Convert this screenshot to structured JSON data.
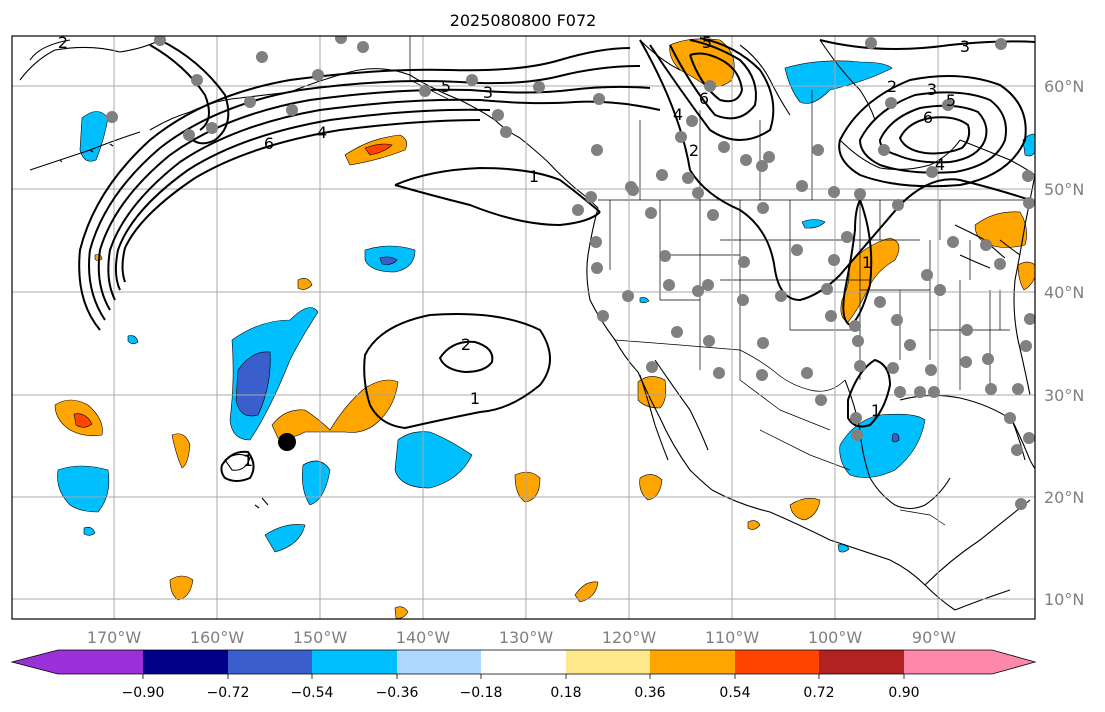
{
  "title": "2025080800 F072",
  "colors": {
    "ocean": "#ffffff",
    "land_line": "#000000",
    "grid": "#a8a8a8",
    "contour": "#000000",
    "station": "#808080",
    "marker": "#000000",
    "tick_label": "#808080"
  },
  "lon_labels": [
    "170°W",
    "160°W",
    "150°W",
    "140°W",
    "130°W",
    "120°W",
    "110°W",
    "100°W",
    "90°W"
  ],
  "lat_labels": [
    "60°N",
    "50°N",
    "40°N",
    "30°N",
    "20°N",
    "10°N"
  ],
  "colorbar": {
    "colors": [
      "#9b30d9",
      "#00008b",
      "#3a5fcd",
      "#00bfff",
      "#add8ff",
      "#ffffff",
      "#ffe88a",
      "#ffa500",
      "#ff4500",
      "#b22222",
      "#ff88aa"
    ],
    "tick_labels": [
      "−0.90",
      "−0.72",
      "−0.54",
      "−0.36",
      "−0.18",
      "0.18",
      "0.36",
      "0.54",
      "0.72",
      "0.90"
    ]
  },
  "contour_labels": [
    {
      "value": "2",
      "id": "c-nw-2"
    },
    {
      "value": "5",
      "id": "c-ak-5"
    },
    {
      "value": "3",
      "id": "c-ak-3"
    },
    {
      "value": "6",
      "id": "c-jet-6"
    },
    {
      "value": "4",
      "id": "c-jet-4"
    },
    {
      "value": "1",
      "id": "c-coast-1"
    },
    {
      "value": "5",
      "id": "c-canada-5"
    },
    {
      "value": "6",
      "id": "c-canada-6"
    },
    {
      "value": "4",
      "id": "c-canada-4"
    },
    {
      "value": "2",
      "id": "c-canada-2"
    },
    {
      "value": "2",
      "id": "c-east-2"
    },
    {
      "value": "3",
      "id": "c-east-3"
    },
    {
      "value": "5",
      "id": "c-east-5"
    },
    {
      "value": "6",
      "id": "c-east-6"
    },
    {
      "value": "4",
      "id": "c-east-4"
    },
    {
      "value": "3",
      "id": "c-ne-3"
    },
    {
      "value": "1",
      "id": "c-plains-1"
    },
    {
      "value": "2",
      "id": "c-pac-2"
    },
    {
      "value": "1",
      "id": "c-pac-1"
    },
    {
      "value": "1",
      "id": "c-hawaii-1"
    },
    {
      "value": "1",
      "id": "c-gulf-1"
    }
  ]
}
